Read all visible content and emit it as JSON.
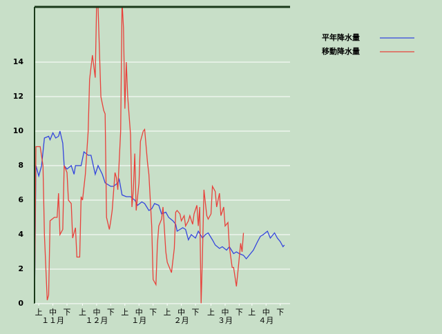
{
  "chart_data": {
    "type": "line",
    "xlim": [
      0,
      181
    ],
    "ylim": [
      0,
      17.2
    ],
    "yticks": [
      0,
      2,
      4,
      6,
      8,
      10,
      12,
      14
    ],
    "grid": true,
    "legend": "top-right",
    "xticks": [
      {
        "value": 3,
        "label": "上"
      },
      {
        "value": 13,
        "label": "中"
      },
      {
        "value": 23,
        "label": "下"
      },
      {
        "value": 34,
        "label": "上"
      },
      {
        "value": 44,
        "label": "中"
      },
      {
        "value": 54,
        "label": "下"
      },
      {
        "value": 64,
        "label": "上"
      },
      {
        "value": 74,
        "label": "中"
      },
      {
        "value": 84,
        "label": "下"
      },
      {
        "value": 94,
        "label": "上"
      },
      {
        "value": 104,
        "label": "中"
      },
      {
        "value": 114,
        "label": "下"
      },
      {
        "value": 125,
        "label": "上"
      },
      {
        "value": 135,
        "label": "中"
      },
      {
        "value": 145,
        "label": "下"
      },
      {
        "value": 154,
        "label": "上"
      },
      {
        "value": 164,
        "label": "中"
      },
      {
        "value": 174,
        "label": "下"
      }
    ],
    "month_ticks": [
      {
        "value": 13,
        "label": "１１月"
      },
      {
        "value": 44,
        "label": "１２月"
      },
      {
        "value": 74,
        "label": "１月"
      },
      {
        "value": 104,
        "label": "２月"
      },
      {
        "value": 135,
        "label": "３月"
      },
      {
        "value": 164,
        "label": "４月"
      }
    ],
    "series": [
      {
        "name": "平年降水量",
        "color": "#3344dd",
        "x": [
          0,
          1,
          3,
          5,
          7,
          10,
          11,
          13,
          15,
          17,
          18,
          20,
          21,
          23,
          26,
          28,
          29,
          32,
          33,
          35,
          38,
          40,
          43,
          45,
          48,
          50,
          54,
          56,
          59,
          60,
          62,
          65,
          68,
          71,
          73,
          76,
          78,
          81,
          83,
          85,
          88,
          90,
          93,
          95,
          98,
          100,
          101,
          103,
          105,
          107,
          109,
          111,
          114,
          116,
          119,
          121,
          123,
          126,
          128,
          131,
          133,
          136,
          138,
          141,
          143,
          145,
          148,
          150,
          153,
          155,
          158,
          160,
          162,
          165,
          167,
          170,
          172,
          174,
          176,
          177
        ],
        "values": [
          0,
          8,
          7.4,
          8,
          9.6,
          9.7,
          9.5,
          9.9,
          9.6,
          9.7,
          10,
          9.3,
          8,
          7.8,
          8,
          7.5,
          8,
          8,
          8,
          8.8,
          8.6,
          8.6,
          7.5,
          8,
          7.5,
          7,
          6.8,
          6.8,
          7,
          7.2,
          6.3,
          6.2,
          6.2,
          6,
          5.7,
          5.9,
          5.8,
          5.4,
          5.5,
          5.8,
          5.7,
          5.2,
          5.3,
          5,
          4.8,
          4.6,
          4.2,
          4.3,
          4.4,
          4.3,
          3.7,
          4,
          3.8,
          4.2,
          3.8,
          4,
          4.1,
          3.7,
          3.4,
          3.2,
          3.3,
          3.1,
          3.3,
          2.9,
          3,
          2.9,
          2.8,
          2.6,
          2.9,
          3.1,
          3.6,
          3.9,
          4,
          4.2,
          3.8,
          4.1,
          3.8,
          3.6,
          3.3,
          3.4
        ]
      },
      {
        "name": "移動降水量",
        "color": "#e8403a",
        "x": [
          0,
          1,
          4,
          6,
          7,
          9,
          10,
          11,
          14,
          16,
          17,
          18,
          20,
          21,
          23,
          24,
          26,
          27,
          29,
          30,
          32,
          33,
          34,
          36,
          38,
          39,
          41,
          43,
          44,
          45,
          47,
          49,
          50,
          51,
          53,
          54,
          55,
          57,
          58,
          59,
          61,
          62,
          63,
          64,
          65,
          66,
          68,
          69,
          70,
          71,
          72,
          74,
          75,
          77,
          78,
          80,
          81,
          83,
          84,
          86,
          87,
          88,
          90,
          91,
          93,
          94,
          96,
          97,
          99,
          100,
          101,
          103,
          104,
          106,
          107,
          109,
          110,
          112,
          113,
          115,
          116,
          117,
          118,
          119,
          120,
          122,
          123,
          125,
          126,
          128,
          129,
          131,
          132,
          134,
          135,
          137,
          138,
          140,
          141,
          143,
          144,
          146,
          147,
          148
        ],
        "values": [
          0,
          9.1,
          9.1,
          8,
          4,
          0.2,
          0.5,
          4.8,
          5,
          5,
          6.4,
          4,
          4.3,
          8,
          7.6,
          6,
          5.8,
          3.8,
          4.4,
          2.7,
          2.7,
          6.2,
          6,
          7.5,
          10,
          13,
          14.4,
          13.1,
          17.5,
          17.2,
          12,
          11.2,
          11,
          5,
          4.3,
          4.8,
          5.4,
          7.6,
          7.3,
          6.6,
          10,
          17.5,
          16,
          11.3,
          14,
          12,
          9.8,
          5.6,
          6.6,
          8.7,
          5.4,
          7,
          9.4,
          10,
          10.1,
          8.2,
          7.5,
          4.5,
          1.4,
          1.1,
          3.4,
          4.5,
          4.9,
          5.6,
          3,
          2.4,
          2,
          1.8,
          3.2,
          5.3,
          5.4,
          5.2,
          4.8,
          5.1,
          4.5,
          4.8,
          5.1,
          4.6,
          5.2,
          5.7,
          4.5,
          5.6,
          0,
          3,
          6.6,
          5.1,
          4.9,
          5.2,
          6.8,
          6.5,
          5.6,
          6.4,
          5.1,
          5.6,
          4.5,
          4.7,
          3.3,
          2.1,
          2.1,
          1,
          1.8,
          3.5,
          3,
          4.1
        ]
      }
    ]
  }
}
